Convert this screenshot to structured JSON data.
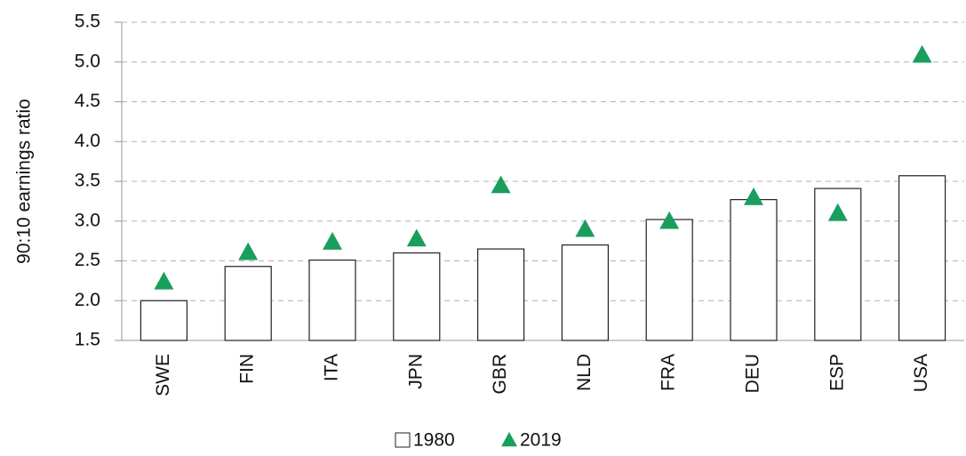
{
  "chart_data": {
    "type": "bar",
    "y_label": "90:10 earnings ratio",
    "categories": [
      "SWE",
      "FIN",
      "ITA",
      "JPN",
      "GBR",
      "NLD",
      "FRA",
      "DEU",
      "ESP",
      "USA"
    ],
    "series": [
      {
        "name": "1980",
        "type": "bar",
        "color": "#ffffff",
        "values": [
          2.0,
          2.43,
          2.51,
          2.6,
          2.65,
          2.7,
          3.02,
          3.27,
          3.41,
          3.57
        ]
      },
      {
        "name": "2019",
        "type": "scatter",
        "marker": "triangle",
        "color": "#1a9e5c",
        "values": [
          2.24,
          2.61,
          2.74,
          2.78,
          3.45,
          2.9,
          3.0,
          3.3,
          3.1,
          5.09
        ]
      }
    ],
    "ylim": [
      1.5,
      5.5
    ],
    "yticks": [
      1.5,
      {
        "value": 2,
        "label": "2.0"
      },
      2.5,
      {
        "value": 3,
        "label": "3.0"
      },
      3.5,
      {
        "value": 4,
        "label": "4.0"
      },
      4.5,
      {
        "value": 5,
        "label": "5.0"
      },
      5.5
    ],
    "grid": true,
    "legend": "bottom"
  }
}
